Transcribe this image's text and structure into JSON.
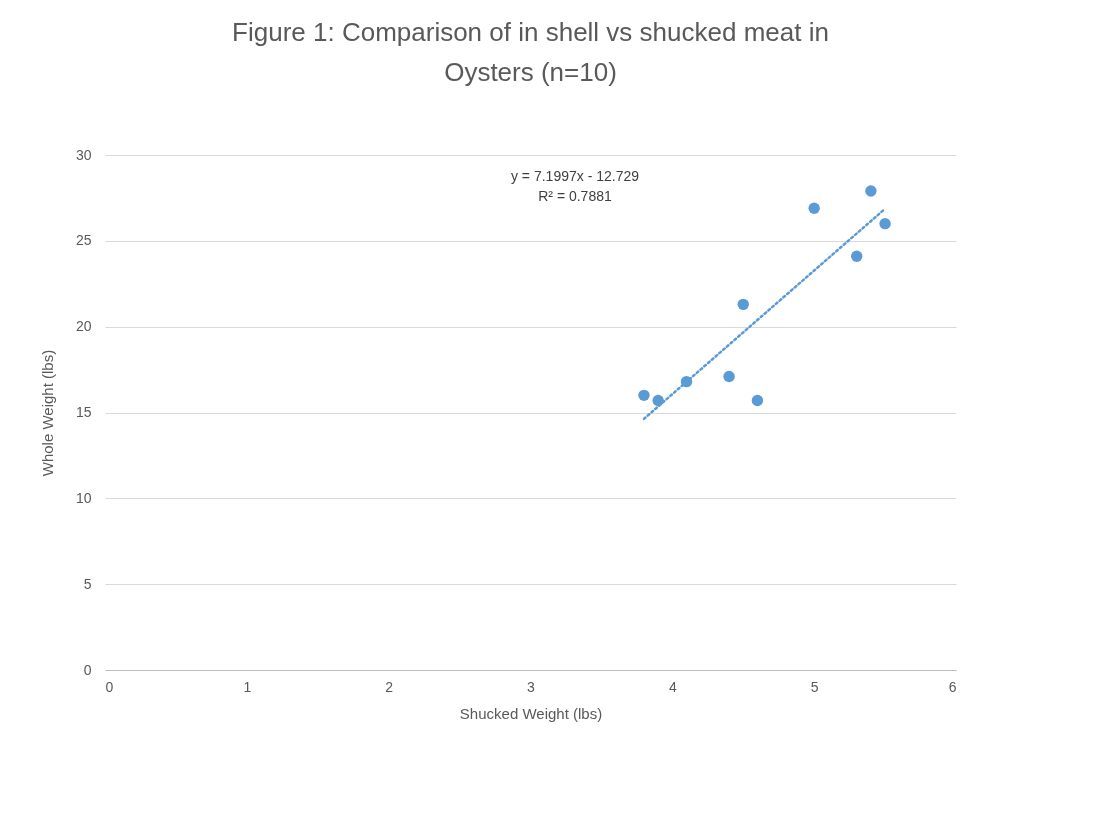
{
  "chart_data": {
    "type": "scatter",
    "title": "Figure 1: Comparison of in shell vs shucked meat in Oysters (n=10)",
    "xlabel": "Shucked Weight (lbs)",
    "ylabel": "Whole Weight (lbs)",
    "xlim": [
      0,
      6
    ],
    "xticks": [
      0,
      1,
      2,
      3,
      4,
      5,
      6
    ],
    "ylim": [
      0,
      30
    ],
    "yticks": [
      0,
      5,
      10,
      15,
      20,
      25,
      30
    ],
    "grid": "y",
    "marker": "circle",
    "annotations": [
      "y = 7.1997x - 12.729",
      "R² = 0.7881"
    ],
    "series": [
      {
        "color": "#5b9bd5",
        "x": [
          3.8,
          3.9,
          4.1,
          4.4,
          4.5,
          4.6,
          5.0,
          5.3,
          5.4,
          5.5
        ],
        "values": [
          16.0,
          15.7,
          16.8,
          17.1,
          21.3,
          15.7,
          26.9,
          24.1,
          27.9,
          26.0
        ]
      },
      {
        "type": "line",
        "color": "#5b9bd5",
        "line_style": "dotted",
        "marker": "none",
        "x": [
          3.8,
          5.5
        ],
        "values": [
          14.63,
          26.87
        ]
      }
    ]
  }
}
